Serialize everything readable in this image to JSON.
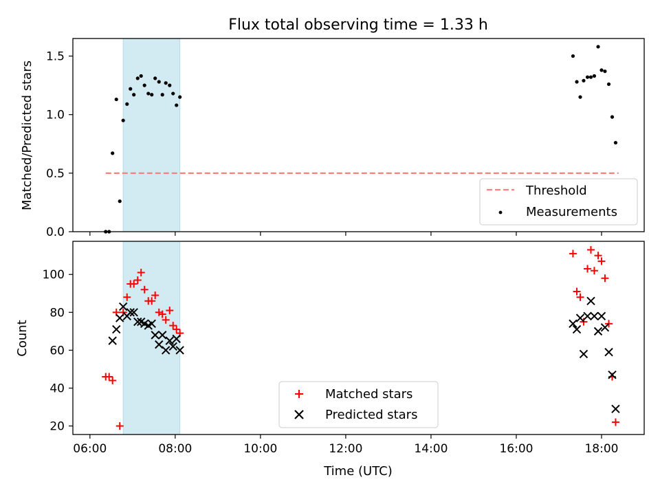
{
  "chart_data": [
    {
      "type": "scatter",
      "title": "Flux total observing time = 1.33 h",
      "xlabel": "",
      "ylabel": "Matched/Predicted stars",
      "xlim": [
        5.6,
        19.0
      ],
      "ylim": [
        0.0,
        1.65
      ],
      "yticks": [
        0.0,
        0.5,
        1.0,
        1.5
      ],
      "ytick_labels": [
        "0.0",
        "0.5",
        "1.0",
        "1.5"
      ],
      "shaded_span": {
        "x0": 6.78,
        "x1": 8.11,
        "color": "#add8e6"
      },
      "threshold": {
        "name": "Threshold",
        "y": 0.5,
        "x0": 6.37,
        "x1": 18.4,
        "color": "#ff7f7f",
        "style": "dashed"
      },
      "legend": {
        "position": "lower-right",
        "entries": [
          "Threshold",
          "Measurements"
        ]
      },
      "series": [
        {
          "name": "Measurements",
          "color": "#000000",
          "marker": "dot",
          "points": [
            [
              6.37,
              0.0
            ],
            [
              6.45,
              0.0
            ],
            [
              6.53,
              0.67
            ],
            [
              6.62,
              1.13
            ],
            [
              6.7,
              0.26
            ],
            [
              6.78,
              0.95
            ],
            [
              6.87,
              1.09
            ],
            [
              6.95,
              1.22
            ],
            [
              7.03,
              1.17
            ],
            [
              7.12,
              1.31
            ],
            [
              7.2,
              1.33
            ],
            [
              7.28,
              1.25
            ],
            [
              7.37,
              1.18
            ],
            [
              7.45,
              1.17
            ],
            [
              7.53,
              1.31
            ],
            [
              7.62,
              1.28
            ],
            [
              7.7,
              1.17
            ],
            [
              7.78,
              1.27
            ],
            [
              7.87,
              1.25
            ],
            [
              7.95,
              1.18
            ],
            [
              8.03,
              1.08
            ],
            [
              8.11,
              1.15
            ],
            [
              17.33,
              1.5
            ],
            [
              17.42,
              1.28
            ],
            [
              17.5,
              1.15
            ],
            [
              17.58,
              1.29
            ],
            [
              17.67,
              1.32
            ],
            [
              17.75,
              1.32
            ],
            [
              17.83,
              1.33
            ],
            [
              17.92,
              1.58
            ],
            [
              18.0,
              1.38
            ],
            [
              18.08,
              1.37
            ],
            [
              18.17,
              1.26
            ],
            [
              18.25,
              0.98
            ],
            [
              18.33,
              0.76
            ]
          ]
        }
      ]
    },
    {
      "type": "scatter",
      "title": "",
      "xlabel": "Time (UTC)",
      "ylabel": "Count",
      "xlim": [
        5.6,
        19.0
      ],
      "ylim": [
        15.5,
        117.5
      ],
      "yticks": [
        20,
        40,
        60,
        80,
        100
      ],
      "ytick_labels": [
        "20",
        "40",
        "60",
        "80",
        "100"
      ],
      "xticks": [
        6,
        8,
        10,
        12,
        14,
        16,
        18
      ],
      "xtick_labels": [
        "06:00",
        "08:00",
        "10:00",
        "12:00",
        "14:00",
        "16:00",
        "18:00"
      ],
      "shaded_span": {
        "x0": 6.78,
        "x1": 8.11,
        "color": "#add8e6"
      },
      "legend": {
        "position": "lower-center",
        "entries": [
          "Matched stars",
          "Predicted stars"
        ]
      },
      "series": [
        {
          "name": "Matched stars",
          "color": "#ff0000",
          "marker": "plus",
          "points": [
            [
              6.37,
              46
            ],
            [
              6.45,
              46
            ],
            [
              6.53,
              44
            ],
            [
              6.62,
              80
            ],
            [
              6.7,
              20
            ],
            [
              6.78,
              80
            ],
            [
              6.87,
              88
            ],
            [
              6.95,
              95
            ],
            [
              7.03,
              95
            ],
            [
              7.12,
              97
            ],
            [
              7.2,
              101
            ],
            [
              7.28,
              92
            ],
            [
              7.37,
              86
            ],
            [
              7.45,
              86
            ],
            [
              7.53,
              89
            ],
            [
              7.62,
              80
            ],
            [
              7.7,
              79
            ],
            [
              7.78,
              76
            ],
            [
              7.87,
              81
            ],
            [
              7.95,
              73
            ],
            [
              8.03,
              71
            ],
            [
              8.11,
              69
            ],
            [
              17.33,
              111
            ],
            [
              17.42,
              91
            ],
            [
              17.5,
              88
            ],
            [
              17.58,
              75
            ],
            [
              17.67,
              103
            ],
            [
              17.75,
              113
            ],
            [
              17.83,
              102
            ],
            [
              17.92,
              110
            ],
            [
              18.0,
              107
            ],
            [
              18.08,
              98
            ],
            [
              18.17,
              74
            ],
            [
              18.25,
              46
            ],
            [
              18.33,
              22
            ]
          ]
        },
        {
          "name": "Predicted stars",
          "color": "#000000",
          "marker": "x",
          "points": [
            [
              6.53,
              65
            ],
            [
              6.62,
              71
            ],
            [
              6.7,
              77
            ],
            [
              6.78,
              83
            ],
            [
              6.87,
              78
            ],
            [
              6.95,
              80
            ],
            [
              7.03,
              80
            ],
            [
              7.12,
              75
            ],
            [
              7.2,
              75
            ],
            [
              7.28,
              74
            ],
            [
              7.37,
              73
            ],
            [
              7.45,
              74
            ],
            [
              7.53,
              68
            ],
            [
              7.62,
              63
            ],
            [
              7.7,
              68
            ],
            [
              7.78,
              60
            ],
            [
              7.87,
              65
            ],
            [
              7.95,
              62
            ],
            [
              8.03,
              66
            ],
            [
              8.11,
              60
            ],
            [
              17.33,
              74
            ],
            [
              17.42,
              71
            ],
            [
              17.5,
              77
            ],
            [
              17.58,
              58
            ],
            [
              17.67,
              78
            ],
            [
              17.75,
              86
            ],
            [
              17.83,
              78
            ],
            [
              17.92,
              70
            ],
            [
              18.0,
              78
            ],
            [
              18.08,
              72
            ],
            [
              18.17,
              59
            ],
            [
              18.25,
              47
            ],
            [
              18.33,
              29
            ]
          ]
        }
      ]
    }
  ]
}
